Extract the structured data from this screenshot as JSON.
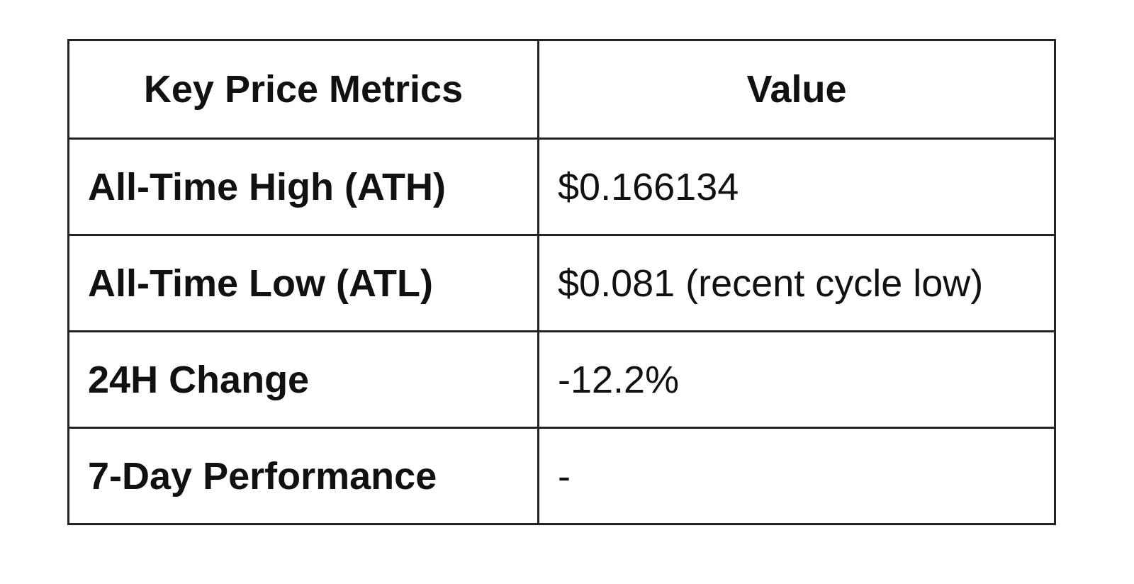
{
  "table": {
    "headers": {
      "metric": "Key Price Metrics",
      "value": "Value"
    },
    "rows": [
      {
        "metric": "All-Time High (ATH)",
        "value": "$0.166134"
      },
      {
        "metric": "All-Time Low (ATL)",
        "value": "$0.081 (recent cycle low)"
      },
      {
        "metric": "24H Change",
        "value": "-12.2%"
      },
      {
        "metric": "7-Day Performance",
        "value": "-"
      }
    ]
  }
}
